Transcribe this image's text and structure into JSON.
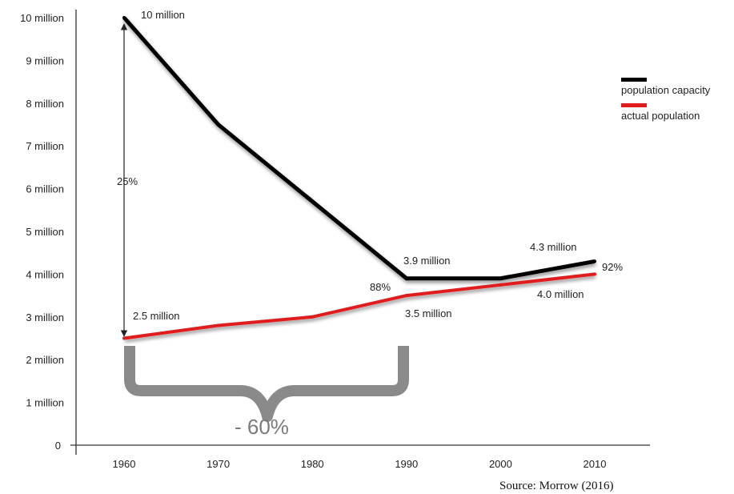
{
  "chart_data": {
    "type": "line",
    "x": [
      1960,
      1970,
      1980,
      1990,
      2000,
      2010
    ],
    "x_tick_labels": [
      "1960",
      "1970",
      "1980",
      "1990",
      "2000",
      "2010"
    ],
    "y_tick_labels": [
      "0",
      "1 million",
      "2 million",
      "3 million",
      "4 million",
      "5 million",
      "6 million",
      "7 million",
      "8 million",
      "9 million",
      "10 million"
    ],
    "ylim": [
      0,
      10
    ],
    "xlim": [
      1960,
      2010
    ],
    "series": [
      {
        "name": "population capacity",
        "color": "#000000",
        "values": [
          10.0,
          7.5,
          5.7,
          3.9,
          3.9,
          4.3
        ]
      },
      {
        "name": "actual population",
        "color": "#e01b1b",
        "values": [
          2.5,
          2.8,
          3.0,
          3.5,
          3.75,
          4.0
        ]
      }
    ],
    "annotations": {
      "cap_1960": "10 million",
      "cap_1990": "3.9 million",
      "cap_2010": "4.3 million",
      "act_1960": "2.5 million",
      "act_1990": "3.5 million",
      "act_2010": "4.0 million",
      "pct_1960": "25%",
      "pct_1990": "88%",
      "pct_2010": "92%",
      "decline": "- 60%"
    },
    "legend_position": "right",
    "grid": false
  },
  "source": "Source: Morrow (2016)"
}
